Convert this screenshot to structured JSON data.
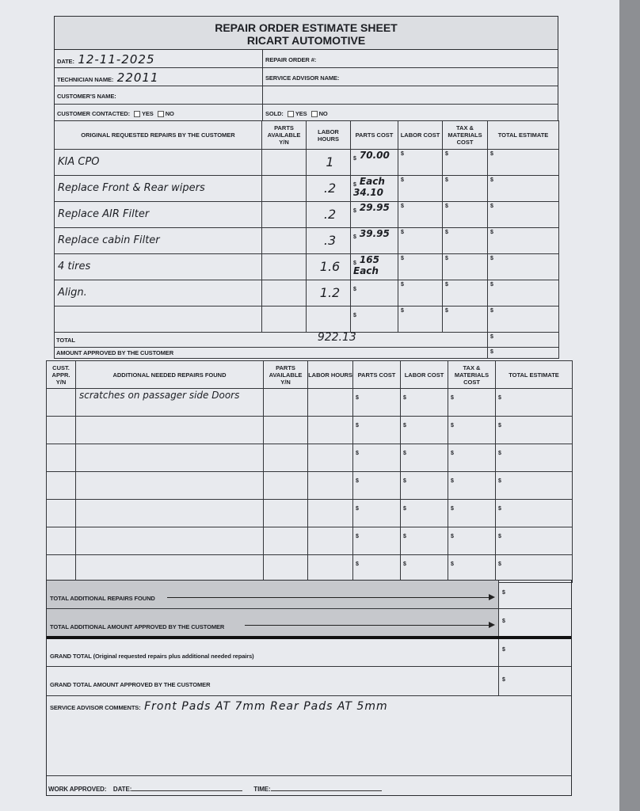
{
  "header": {
    "title": "REPAIR ORDER ESTIMATE SHEET",
    "company": "RICART AUTOMOTIVE"
  },
  "info": {
    "date_label": "DATE:",
    "date_value": "12-11-2025",
    "repair_order_label": "REPAIR ORDER #:",
    "repair_order_value": "",
    "technician_label": "TECHNICIAN NAME:",
    "technician_value": "22011",
    "service_advisor_label": "SERVICE ADVISOR NAME:",
    "service_advisor_value": "",
    "customer_name_label": "CUSTOMER'S NAME:",
    "customer_name_value": "",
    "contacted_label": "CUSTOMER CONTACTED:",
    "sold_label": "SOLD:",
    "yes_label": "YES",
    "no_label": "NO"
  },
  "original": {
    "headers": [
      "ORIGINAL REQUESTED REPAIRS BY THE CUSTOMER",
      "PARTS AVAILABLE Y/N",
      "LABOR HOURS",
      "PARTS COST",
      "LABOR COST",
      "TAX & MATERIALS COST",
      "TOTAL ESTIMATE"
    ],
    "currency": "$",
    "rows": [
      {
        "repair": "KIA CPO",
        "parts_available": "",
        "labor_hours": "1",
        "parts_cost": "70.00"
      },
      {
        "repair": "Replace Front & Rear wipers",
        "parts_available": "",
        "labor_hours": ".2",
        "parts_cost": "Each 34.10"
      },
      {
        "repair": "Replace AIR Filter",
        "parts_available": "",
        "labor_hours": ".2",
        "parts_cost": "29.95"
      },
      {
        "repair": "Replace cabin Filter",
        "parts_available": "",
        "labor_hours": ".3",
        "parts_cost": "39.95"
      },
      {
        "repair": "4 tires",
        "parts_available": "",
        "labor_hours": "1.6",
        "parts_cost": "165 Each"
      },
      {
        "repair": "Align.",
        "parts_available": "",
        "labor_hours": "1.2",
        "parts_cost": ""
      },
      {
        "repair": "",
        "parts_available": "",
        "labor_hours": "",
        "parts_cost": ""
      }
    ],
    "total_label": "TOTAL",
    "total_value": "922.13",
    "approved_label": "AMOUNT APPROVED BY THE CUSTOMER"
  },
  "additional": {
    "headers": [
      "CUST. APPR. Y/N",
      "ADDITIONAL NEEDED REPAIRS FOUND",
      "PARTS AVAILABLE Y/N",
      "LABOR HOURS",
      "PARTS COST",
      "LABOR COST",
      "TAX & MATERIALS COST",
      "TOTAL ESTIMATE"
    ],
    "rows": [
      {
        "repair": "scratches on passager side Doors"
      },
      {
        "repair": ""
      },
      {
        "repair": ""
      },
      {
        "repair": ""
      },
      {
        "repair": ""
      },
      {
        "repair": ""
      },
      {
        "repair": ""
      }
    ]
  },
  "summary": {
    "total_additional_label": "TOTAL ADDITIONAL REPAIRS FOUND",
    "total_additional_approved_label": "TOTAL ADDITIONAL AMOUNT APPROVED BY THE CUSTOMER",
    "grand_total_label": "GRAND TOTAL (Original requested repairs plus additional needed repairs)",
    "grand_total_approved_label": "GRAND TOTAL AMOUNT APPROVED BY THE CUSTOMER"
  },
  "comments": {
    "label": "SERVICE ADVISOR COMMENTS:",
    "value": "Front Pads AT 7mm Rear Pads AT 5mm"
  },
  "footer": {
    "work_approved_label": "WORK APPROVED:",
    "date_label": "DATE:",
    "time_label": "TIME:"
  }
}
